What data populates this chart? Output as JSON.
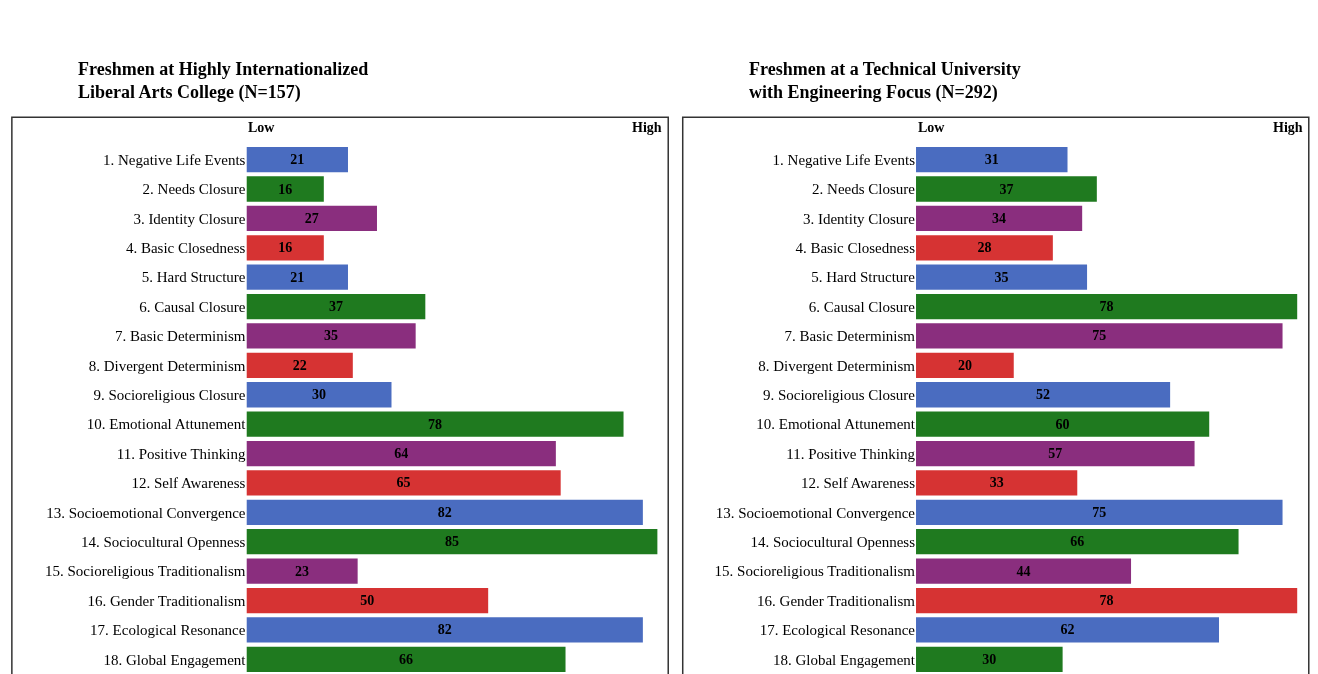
{
  "chart_data": [
    {
      "type": "bar",
      "orientation": "horizontal",
      "title": "Freshmen at Highly Internationalized\nLiberal Arts College (N=157)",
      "categories": [
        "1. Negative Life Events",
        "2. Needs Closure",
        "3. Identity Closure",
        "4. Basic Closedness",
        "5. Hard Structure",
        "6. Causal Closure",
        "7. Basic Determinism",
        "8. Divergent Determinism",
        "9. Socioreligious Closure",
        "10. Emotional Attunement",
        "11. Positive Thinking",
        "12. Self Awareness",
        "13. Socioemotional Convergence",
        "14. Sociocultural Openness",
        "15. Socioreligious Traditionalism",
        "16. Gender Traditionalism",
        "17. Ecological Resonance",
        "18. Global Engagement"
      ],
      "values": [
        21,
        16,
        27,
        16,
        21,
        37,
        35,
        22,
        30,
        78,
        64,
        65,
        82,
        85,
        23,
        50,
        82,
        66
      ],
      "colors": [
        "#4a6cc0",
        "#1f7a1f",
        "#8a2e7e",
        "#d63333",
        "#4a6cc0",
        "#1f7a1f",
        "#8a2e7e",
        "#d63333",
        "#4a6cc0",
        "#1f7a1f",
        "#8a2e7e",
        "#d63333",
        "#4a6cc0",
        "#1f7a1f",
        "#8a2e7e",
        "#d63333",
        "#4a6cc0",
        "#1f7a1f"
      ],
      "annotations": [
        "Low",
        "High"
      ],
      "data_labels": true
    },
    {
      "type": "bar",
      "orientation": "horizontal",
      "title": "Freshmen at a Technical University\nwith Engineering Focus (N=292)",
      "categories": [
        "1. Negative Life Events",
        "2. Needs Closure",
        "3. Identity Closure",
        "4. Basic Closedness",
        "5. Hard Structure",
        "6. Causal Closure",
        "7. Basic Determinism",
        "8. Divergent Determinism",
        "9. Socioreligious Closure",
        "10. Emotional Attunement",
        "11. Positive Thinking",
        "12. Self Awareness",
        "13. Socioemotional Convergence",
        "14. Sociocultural Openness",
        "15. Socioreligious Traditionalism",
        "16. Gender Traditionalism",
        "17. Ecological Resonance",
        "18. Global Engagement"
      ],
      "values": [
        31,
        37,
        34,
        28,
        35,
        78,
        75,
        20,
        52,
        60,
        57,
        33,
        75,
        66,
        44,
        78,
        62,
        30
      ],
      "colors": [
        "#4a6cc0",
        "#1f7a1f",
        "#8a2e7e",
        "#d63333",
        "#4a6cc0",
        "#1f7a1f",
        "#8a2e7e",
        "#d63333",
        "#4a6cc0",
        "#1f7a1f",
        "#8a2e7e",
        "#d63333",
        "#4a6cc0",
        "#1f7a1f",
        "#8a2e7e",
        "#d63333",
        "#4a6cc0",
        "#1f7a1f"
      ],
      "annotations": [
        "Low",
        "High"
      ],
      "data_labels": true
    }
  ]
}
